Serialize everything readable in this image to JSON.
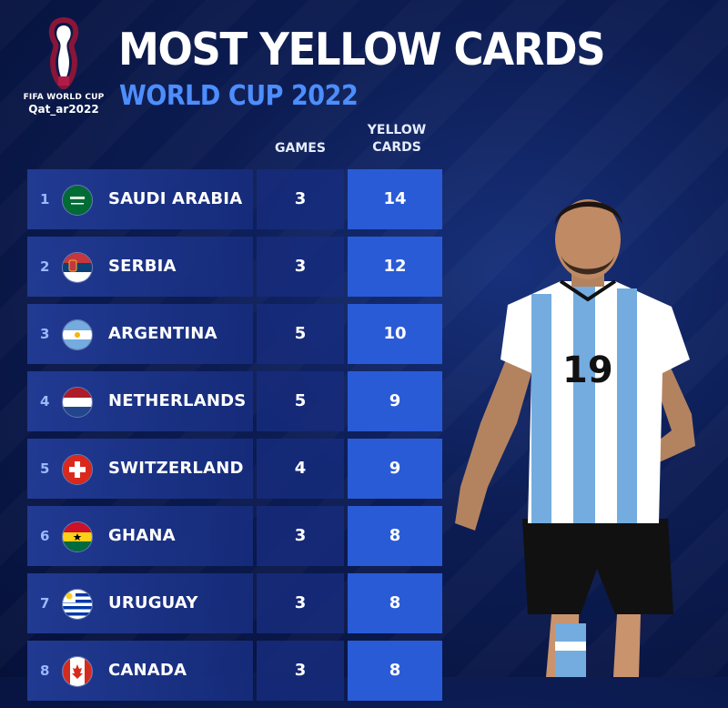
{
  "logo": {
    "line1": "FIFA WORLD CUP",
    "line2": "Qat_ar2022"
  },
  "header": {
    "title": "MOST YELLOW CARDS",
    "subtitle": "WORLD CUP 2022"
  },
  "columns": {
    "games": "GAMES",
    "cards_line1": "YELLOW",
    "cards_line2": "CARDS"
  },
  "colors": {
    "background": "#0c1c52",
    "accent": "#4d8eff",
    "cards_cell": "#2a5bd6"
  },
  "rows": [
    {
      "rank": "1",
      "country": "SAUDI ARABIA",
      "games": "3",
      "cards": "14",
      "flag": "saudi-arabia-flag-icon"
    },
    {
      "rank": "2",
      "country": "SERBIA",
      "games": "3",
      "cards": "12",
      "flag": "serbia-flag-icon"
    },
    {
      "rank": "3",
      "country": "ARGENTINA",
      "games": "5",
      "cards": "10",
      "flag": "argentina-flag-icon"
    },
    {
      "rank": "4",
      "country": "NETHERLANDS",
      "games": "5",
      "cards": "9",
      "flag": "netherlands-flag-icon"
    },
    {
      "rank": "5",
      "country": "SWITZERLAND",
      "games": "4",
      "cards": "9",
      "flag": "switzerland-flag-icon"
    },
    {
      "rank": "6",
      "country": "GHANA",
      "games": "3",
      "cards": "8",
      "flag": "ghana-flag-icon"
    },
    {
      "rank": "7",
      "country": "URUGUAY",
      "games": "3",
      "cards": "8",
      "flag": "uruguay-flag-icon"
    },
    {
      "rank": "8",
      "country": "CANADA",
      "games": "3",
      "cards": "8",
      "flag": "canada-flag-icon"
    }
  ],
  "player": {
    "shirt_number": "19"
  }
}
